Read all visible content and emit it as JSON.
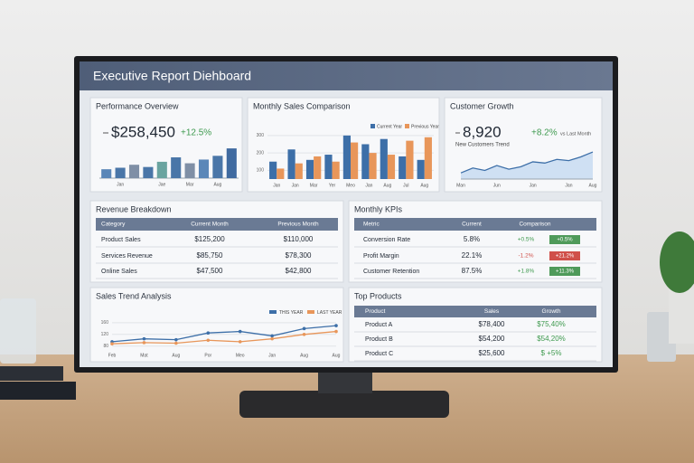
{
  "header": {
    "title": "Executive Report Diehboard"
  },
  "performance_overview": {
    "value": "$258,450",
    "change": "+12.5%"
  },
  "customer_growth": {
    "value": "8,920",
    "change": "+8.2%",
    "note": "vs Last Month"
  },
  "chart_data": [
    {
      "type": "bar",
      "title": "Performance Overview",
      "categories": [
        null,
        "Jan",
        null,
        null,
        "Jae",
        null,
        "Mar",
        null,
        "Aug",
        null
      ],
      "values": [
        12,
        14,
        18,
        15,
        22,
        28,
        20,
        25,
        30,
        40
      ],
      "colors": [
        "#5b87b8",
        "#4a76a8",
        "#7f8fa6",
        "#4a76a8",
        "#6aa4a0",
        "#4a76a8",
        "#7f8fa6",
        "#5b87b8",
        "#4a76a8",
        "#3f6aa0"
      ],
      "ylim": [
        0,
        45
      ]
    },
    {
      "type": "grouped-bar",
      "title": "Monthly Sales Comparison",
      "categories": [
        "Jan",
        "Jan",
        "Mar",
        "Yer",
        "Meo",
        "Jan",
        "Aug",
        "Jul",
        "Aug"
      ],
      "series": [
        {
          "name": "Current Year",
          "color": "#3d6fa8",
          "values": [
            150,
            220,
            160,
            190,
            300,
            250,
            280,
            180,
            160
          ]
        },
        {
          "name": "Previous Year",
          "color": "#e8965a",
          "values": [
            110,
            140,
            180,
            150,
            260,
            200,
            190,
            270,
            290
          ]
        }
      ],
      "ylim": [
        50,
        320
      ],
      "yticks": [
        100,
        200,
        300
      ]
    },
    {
      "type": "area",
      "title": "Customer Growth",
      "subtitle": "New Customers Trend",
      "categories": [
        "Man",
        null,
        null,
        "Jun",
        null,
        null,
        "Jan",
        null,
        null,
        "Jan",
        null,
        "Aug"
      ],
      "values": [
        10,
        18,
        14,
        22,
        16,
        20,
        28,
        26,
        32,
        30,
        36,
        44
      ],
      "color": "#3d6fa8",
      "ylim": [
        0,
        50
      ]
    },
    {
      "type": "line",
      "title": "Sales Trend Analysis",
      "categories": [
        "Feb",
        "Mat",
        "Aug",
        "Por",
        "Meo",
        "Jan",
        "Aug",
        "Aug"
      ],
      "series": [
        {
          "name": "THIS YEAR",
          "color": "#3d6fa8",
          "values": [
            95,
            105,
            102,
            125,
            130,
            115,
            140,
            150
          ]
        },
        {
          "name": "LAST YEAR",
          "color": "#e8965a",
          "values": [
            88,
            92,
            90,
            100,
            95,
            105,
            120,
            130
          ]
        }
      ],
      "ylim": [
        70,
        175
      ],
      "yticks": [
        80,
        120,
        160
      ]
    }
  ],
  "revenue_breakdown": {
    "title": "Revenue Breakdown",
    "columns": [
      "Category",
      "Current Month",
      "Previous Month"
    ],
    "rows": [
      [
        "Product Sales",
        "$125,200",
        "$110,000"
      ],
      [
        "Services Revenue",
        "$85,750",
        "$78,300"
      ],
      [
        "Online Sales",
        "$47,500",
        "$42,800"
      ]
    ]
  },
  "monthly_kpis": {
    "title": "Monthly KPIs",
    "columns": [
      "Metric",
      "Current",
      "Comparison"
    ],
    "rows": [
      [
        "Conversion Rate",
        "5.8%",
        "+0.5%",
        "+0.5%"
      ],
      [
        "Profit Margin",
        "22.1%",
        "-1.2%",
        "+21.2%"
      ],
      [
        "Customer Retention",
        "87.5%",
        "+1.8%",
        "+11.3%"
      ]
    ],
    "badge_colors": [
      "#4f9a5a",
      "#d0504a",
      "#4f9a5a"
    ]
  },
  "top_products": {
    "title": "Top Products",
    "columns": [
      "Product",
      "Sales",
      "Growth"
    ],
    "rows": [
      [
        "Product A",
        "$78,400",
        "$75,40%"
      ],
      [
        "Product B",
        "$54,200",
        "$54,20%"
      ],
      [
        "Product C",
        "$25,600",
        "$ +5%"
      ]
    ]
  }
}
